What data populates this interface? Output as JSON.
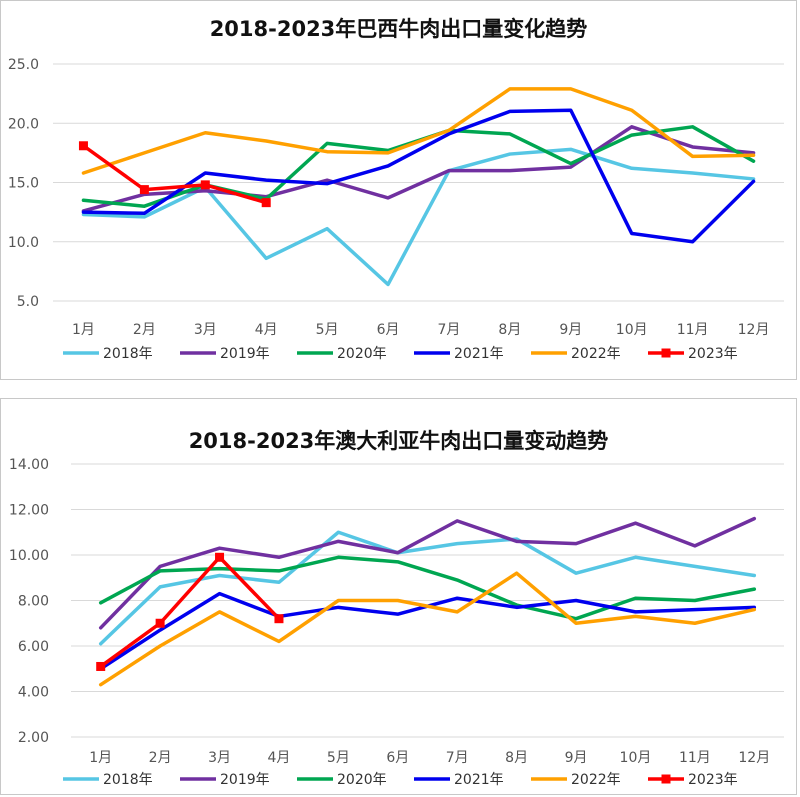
{
  "chart_data": [
    {
      "type": "line",
      "title": "2018-2023年巴西牛肉出口量变化趋势",
      "categories": [
        "1月",
        "2月",
        "3月",
        "4月",
        "5月",
        "6月",
        "7月",
        "8月",
        "9月",
        "10月",
        "11月",
        "12月"
      ],
      "ylim": [
        5,
        25
      ],
      "yticks": [
        "5.0",
        "10.0",
        "15.0",
        "20.0",
        "25.0"
      ],
      "ytick_values": [
        5,
        10,
        15,
        20,
        25
      ],
      "grid": true,
      "legend_position": "bottom",
      "series": [
        {
          "name": "2018年",
          "color": "#56c6e4",
          "marker": false,
          "values": [
            12.3,
            12.1,
            14.6,
            8.6,
            11.1,
            6.4,
            16.0,
            17.4,
            17.8,
            16.2,
            15.8,
            15.3
          ]
        },
        {
          "name": "2019年",
          "color": "#7030a0",
          "marker": false,
          "values": [
            12.6,
            14.0,
            14.3,
            13.8,
            15.2,
            13.7,
            16.0,
            16.0,
            16.3,
            19.7,
            18.0,
            17.5
          ]
        },
        {
          "name": "2020年",
          "color": "#00a651",
          "marker": false,
          "values": [
            13.5,
            13.0,
            14.8,
            13.6,
            18.3,
            17.7,
            19.4,
            19.1,
            16.6,
            19.0,
            19.7,
            16.8
          ]
        },
        {
          "name": "2021年",
          "color": "#0000ee",
          "marker": false,
          "values": [
            12.5,
            12.4,
            15.8,
            15.2,
            14.9,
            16.4,
            19.1,
            21.0,
            21.1,
            10.7,
            10.0,
            15.1
          ]
        },
        {
          "name": "2022年",
          "color": "#ffa000",
          "marker": false,
          "values": [
            15.8,
            17.5,
            19.2,
            18.5,
            17.6,
            17.5,
            19.4,
            22.9,
            22.9,
            21.1,
            17.2,
            17.3
          ]
        },
        {
          "name": "2023年",
          "color": "#ff0000",
          "marker": true,
          "values": [
            18.1,
            14.4,
            14.8,
            13.3,
            null,
            null,
            null,
            null,
            null,
            null,
            null,
            null
          ]
        }
      ]
    },
    {
      "type": "line",
      "title": "2018-2023年澳大利亚牛肉出口量变动趋势",
      "categories": [
        "1月",
        "2月",
        "3月",
        "4月",
        "5月",
        "6月",
        "7月",
        "8月",
        "9月",
        "10月",
        "11月",
        "12月"
      ],
      "ylim": [
        2,
        14
      ],
      "yticks": [
        "2.00",
        "4.00",
        "6.00",
        "8.00",
        "10.00",
        "12.00",
        "14.00"
      ],
      "ytick_values": [
        2,
        4,
        6,
        8,
        10,
        12,
        14
      ],
      "grid": true,
      "legend_position": "bottom",
      "series": [
        {
          "name": "2018年",
          "color": "#56c6e4",
          "marker": false,
          "values": [
            6.1,
            8.6,
            9.1,
            8.8,
            11.0,
            10.1,
            10.5,
            10.7,
            9.2,
            9.9,
            9.5,
            9.1
          ]
        },
        {
          "name": "2019年",
          "color": "#7030a0",
          "marker": false,
          "values": [
            6.8,
            9.5,
            10.3,
            9.9,
            10.6,
            10.1,
            11.5,
            10.6,
            10.5,
            11.4,
            10.4,
            11.6
          ]
        },
        {
          "name": "2020年",
          "color": "#00a651",
          "marker": false,
          "values": [
            7.9,
            9.3,
            9.4,
            9.3,
            9.9,
            9.7,
            8.9,
            7.8,
            7.2,
            8.1,
            8.0,
            8.5
          ]
        },
        {
          "name": "2021年",
          "color": "#0000ee",
          "marker": false,
          "values": [
            5.0,
            6.7,
            8.3,
            7.3,
            7.7,
            7.4,
            8.1,
            7.7,
            8.0,
            7.5,
            7.6,
            7.7
          ]
        },
        {
          "name": "2022年",
          "color": "#ffa000",
          "marker": false,
          "values": [
            4.3,
            6.0,
            7.5,
            6.2,
            8.0,
            8.0,
            7.5,
            9.2,
            7.0,
            7.3,
            7.0,
            7.6
          ]
        },
        {
          "name": "2023年",
          "color": "#ff0000",
          "marker": true,
          "values": [
            5.1,
            7.0,
            9.9,
            7.2,
            null,
            null,
            null,
            null,
            null,
            null,
            null,
            null
          ]
        }
      ]
    }
  ]
}
